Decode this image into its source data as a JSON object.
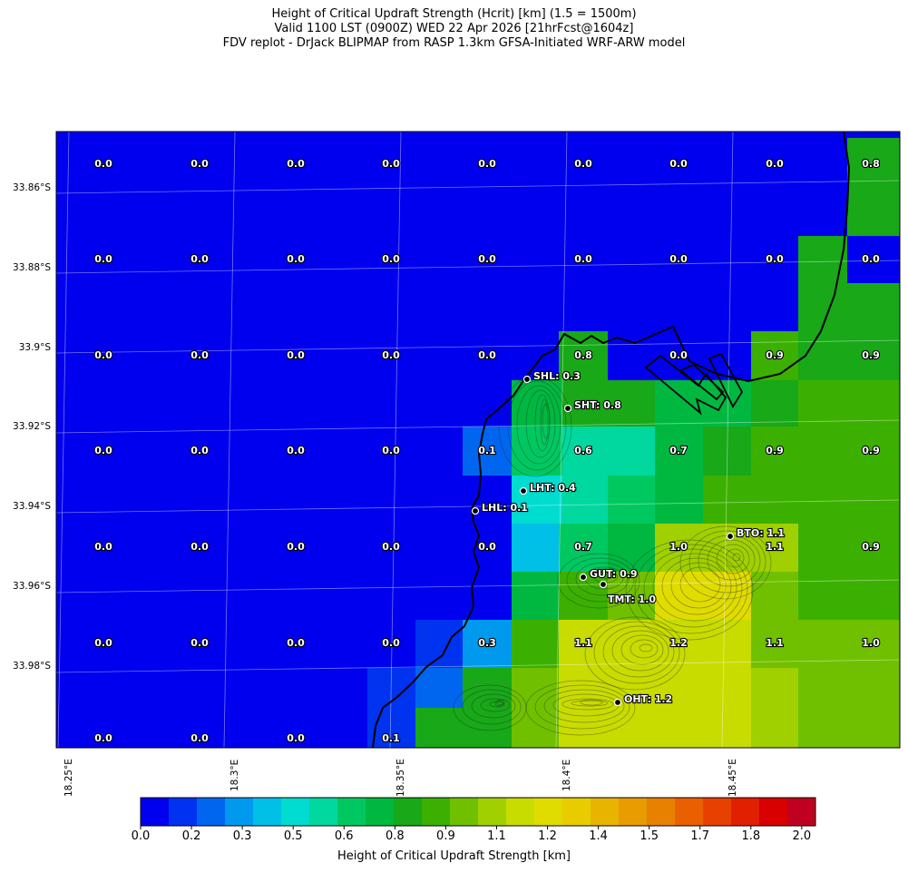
{
  "header": {
    "title_line1": "Height of Critical Updraft Strength (Hcrit) [km] (1.5 = 1500m)",
    "title_line2": "Valid 1100 LST (0900Z) WED 22 Apr 2026 [21hrFcst@1604z]",
    "title_line3": "FDV replot - DrJack BLIPMAP from RASP 1.3km GFSA-Initiated WRF-ARW model"
  },
  "map": {
    "lat_labels": [
      "33.86°S",
      "33.88°S",
      "33.9°S",
      "33.92°S",
      "33.94°S",
      "33.96°S",
      "33.98°S"
    ],
    "lon_labels": [
      "18.25°E",
      "18.3°E",
      "18.35°E",
      "18.4°E",
      "18.45°E"
    ],
    "grid_values": [
      [
        "0.0",
        "0.0",
        "0.0",
        "0.0",
        "0.0",
        "0.0",
        "0.0",
        "0.0",
        "0.8"
      ],
      [
        "0.0",
        "0.0",
        "0.0",
        "0.0",
        "0.0",
        "0.0",
        "0.0",
        "0.0",
        "0.0"
      ],
      [
        "0.0",
        "0.0",
        "0.0",
        "0.0",
        "0.0",
        "0.8",
        "0.0",
        "0.9",
        "0.9"
      ],
      [
        "0.0",
        "0.0",
        "0.0",
        "0.0",
        "0.1",
        "0.6",
        "0.7",
        "0.9",
        "0.9"
      ],
      [
        "0.0",
        "0.0",
        "0.0",
        "0.0",
        "0.0",
        "0.7",
        "1.0",
        "1.1",
        "0.9"
      ],
      [
        "0.0",
        "0.0",
        "0.0",
        "0.0",
        "0.3",
        "1.1",
        "1.2",
        "1.1",
        "1.0"
      ],
      [
        "0.0",
        "0.0",
        "0.0",
        "0.1"
      ]
    ],
    "stations": [
      {
        "label": "SHL: 0.3"
      },
      {
        "label": "SHT: 0.8"
      },
      {
        "label": "LHT: 0.4"
      },
      {
        "label": "LHL: 0.1"
      },
      {
        "label": "BTO: 1.1"
      },
      {
        "label": "GUT: 0.9"
      },
      {
        "label": "TMT: 1.0"
      },
      {
        "label": "OHT: 1.2"
      }
    ]
  },
  "colorbar": {
    "label": "Height of Critical Updraft Strength [km]",
    "tick_labels": [
      "0.0",
      "0.2",
      "0.3",
      "0.5",
      "0.6",
      "0.8",
      "0.9",
      "1.1",
      "1.2",
      "1.4",
      "1.5",
      "1.7",
      "1.8",
      "2.0"
    ],
    "colors": [
      "#0000ee",
      "#0033f0",
      "#0066f0",
      "#0099ee",
      "#00c0e8",
      "#00dcd0",
      "#00d8a0",
      "#00c860",
      "#00b840",
      "#18a818",
      "#3cb000",
      "#70c000",
      "#a0d000",
      "#c8dc00",
      "#e0dc00",
      "#e8cc00",
      "#e8b400",
      "#e89c00",
      "#e88000",
      "#e86000",
      "#e84000",
      "#e02000",
      "#d80000",
      "#c00020"
    ]
  },
  "colors": {
    "water": "#0000ee",
    "coast": "#000000"
  }
}
